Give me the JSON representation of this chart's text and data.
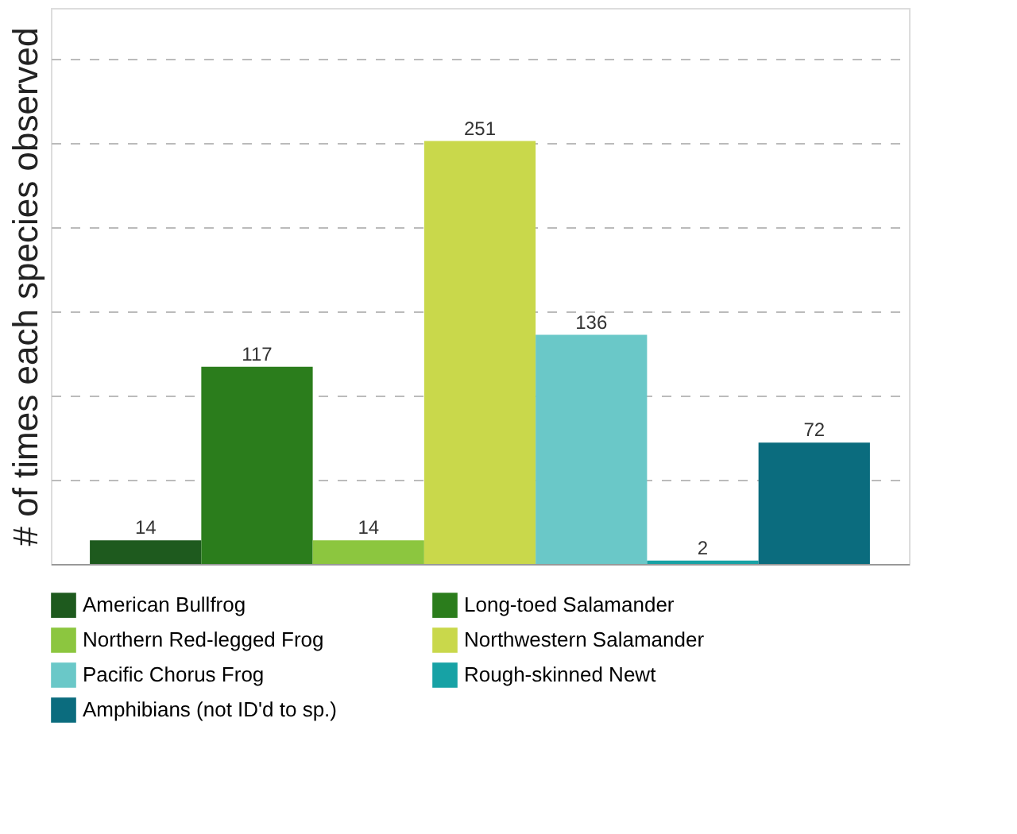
{
  "chart_data": {
    "type": "bar",
    "ylabel": "# of times each species observed",
    "categories": [
      null
    ],
    "series": [
      {
        "name": "American Bullfrog",
        "color": "#1e5a1e",
        "values": [
          14
        ]
      },
      {
        "name": "Long-toed Salamander",
        "color": "#2b7d1c",
        "values": [
          117
        ]
      },
      {
        "name": "Northern Red-legged Frog",
        "color": "#8cc63f",
        "values": [
          14
        ]
      },
      {
        "name": "Northwestern Salamander",
        "color": "#c9d84b",
        "values": [
          251
        ]
      },
      {
        "name": "Pacific Chorus Frog",
        "color": "#6ac8c8",
        "values": [
          136
        ]
      },
      {
        "name": "Rough-skinned Newt",
        "color": "#17a2a5",
        "values": [
          2
        ]
      },
      {
        "name": "Amphibians (not ID'd to sp.)",
        "color": "#0b6c7e",
        "values": [
          72
        ]
      }
    ],
    "ylim": [
      0,
      330
    ],
    "yticks": [
      {
        "value": 50,
        "label": null
      },
      {
        "value": 100,
        "label": null
      },
      {
        "value": 150,
        "label": null
      },
      {
        "value": 200,
        "label": null
      },
      {
        "value": 250,
        "label": null
      },
      {
        "value": 300,
        "label": null
      }
    ],
    "tick_labels": false,
    "grid": "y",
    "data_labels": true,
    "legend": "bottom"
  }
}
